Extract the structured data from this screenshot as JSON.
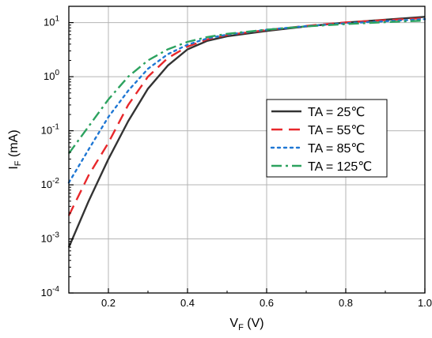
{
  "chart_data": {
    "type": "line",
    "x_axis": {
      "label_main": "V",
      "label_sub": "F",
      "label_unit": " (V)",
      "range": [
        0.1,
        1.0
      ],
      "ticks": [
        0.2,
        0.4,
        0.6,
        0.8,
        1.0
      ],
      "tick_labels": [
        "0.2",
        "0.4",
        "0.6",
        "0.8",
        "1.0"
      ]
    },
    "y_axis": {
      "label_main": "I",
      "label_sub": "F",
      "label_unit": " (mA)",
      "scale": "log",
      "range": [
        0.0001,
        20
      ],
      "ticks": [
        {
          "value": 0.0001,
          "base": "10",
          "exp": "-4"
        },
        {
          "value": 0.001,
          "base": "10",
          "exp": "-3"
        },
        {
          "value": 0.01,
          "base": "10",
          "exp": "-2"
        },
        {
          "value": 0.1,
          "base": "10",
          "exp": "-1"
        },
        {
          "value": 1,
          "base": "10",
          "exp": "0"
        },
        {
          "value": 10,
          "base": "10",
          "exp": "1"
        }
      ]
    },
    "grid": true,
    "legend_position": "right-center",
    "series": [
      {
        "name": "TA = 25℃",
        "color": "#333333",
        "dash": "solid",
        "x": [
          0.1,
          0.15,
          0.2,
          0.25,
          0.3,
          0.35,
          0.4,
          0.45,
          0.5,
          0.6,
          0.7,
          0.8,
          0.9,
          1.0
        ],
        "y": [
          0.0007,
          0.005,
          0.03,
          0.15,
          0.6,
          1.6,
          3.2,
          4.6,
          5.6,
          7.0,
          8.5,
          10.0,
          11.3,
          12.8
        ]
      },
      {
        "name": "TA = 55℃",
        "color": "#e8282b",
        "dash": "dashed",
        "x": [
          0.1,
          0.15,
          0.2,
          0.25,
          0.3,
          0.35,
          0.4,
          0.45,
          0.5,
          0.6,
          0.7,
          0.8,
          0.9,
          1.0
        ],
        "y": [
          0.0027,
          0.015,
          0.06,
          0.3,
          1.0,
          2.2,
          3.6,
          4.9,
          5.9,
          7.3,
          8.7,
          10.1,
          11.1,
          12.1
        ]
      },
      {
        "name": "TA = 85℃",
        "color": "#1f77d4",
        "dash": "dotted",
        "x": [
          0.1,
          0.15,
          0.2,
          0.25,
          0.3,
          0.35,
          0.4,
          0.45,
          0.5,
          0.6,
          0.7,
          0.8,
          0.9,
          1.0
        ],
        "y": [
          0.011,
          0.045,
          0.18,
          0.55,
          1.4,
          2.6,
          3.9,
          5.1,
          6.0,
          7.4,
          8.6,
          9.7,
          10.6,
          11.6
        ]
      },
      {
        "name": "TA = 125℃",
        "color": "#2ca25f",
        "dash": "dashdot",
        "x": [
          0.1,
          0.15,
          0.2,
          0.25,
          0.3,
          0.35,
          0.4,
          0.45,
          0.5,
          0.6,
          0.7,
          0.8,
          0.9,
          1.0
        ],
        "y": [
          0.038,
          0.12,
          0.38,
          1.0,
          2.0,
          3.2,
          4.4,
          5.4,
          6.2,
          7.4,
          8.5,
          9.4,
          10.2,
          10.9
        ]
      }
    ]
  }
}
